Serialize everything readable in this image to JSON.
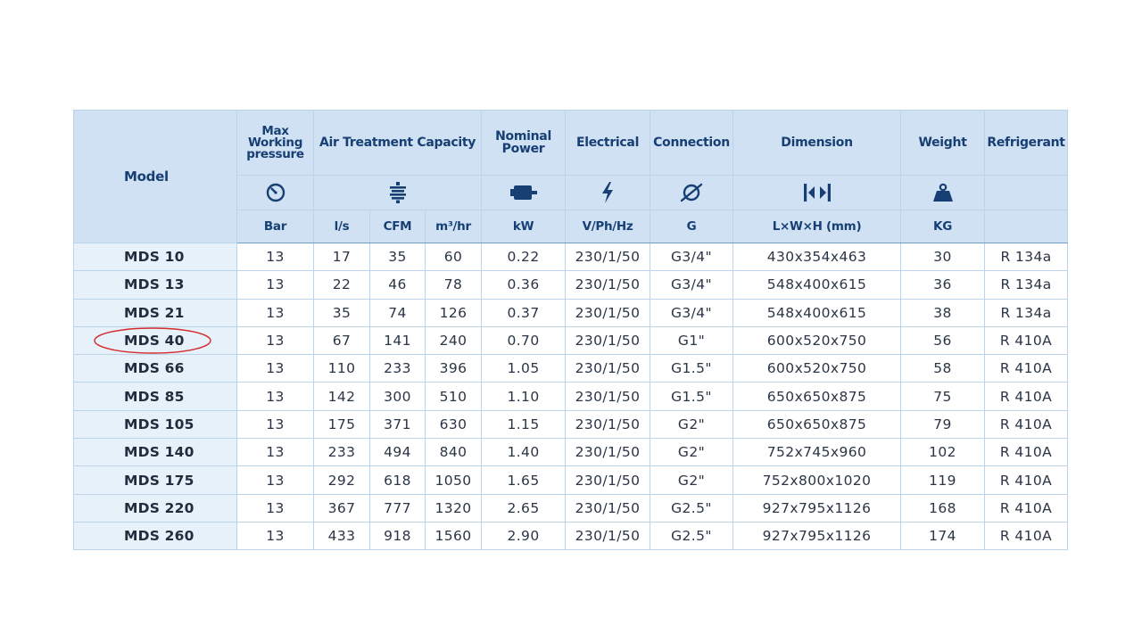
{
  "headers": {
    "model": "Model",
    "max_working_pressure": [
      "Max",
      "Working",
      "pressure"
    ],
    "air_treatment_capacity": "Air Treatment Capacity",
    "nominal_power": [
      "Nominal",
      "Power"
    ],
    "electrical": "Electrical",
    "connection": "Connection",
    "dimension": "Dimension",
    "weight": "Weight",
    "refrigerant": "Refrigerant"
  },
  "icons": {
    "pressure": "pressure-gauge-icon",
    "air_treatment": "air-treatment-icon",
    "power": "motor-icon",
    "electrical": "lightning-bolt-icon",
    "connection": "pipe-diameter-icon",
    "dimension": "dimension-arrows-icon",
    "weight": "weight-icon"
  },
  "units": {
    "pressure": "Bar",
    "flow_ls": "l/s",
    "flow_cfm": "CFM",
    "flow_m3hr": "m³/hr",
    "power": "kW",
    "electrical": "V/Ph/Hz",
    "connection": "G",
    "dimension": "L×W×H (mm)",
    "weight": "KG",
    "refrigerant": ""
  },
  "rows": [
    {
      "model": "MDS 10",
      "pressure": "13",
      "ls": "17",
      "cfm": "35",
      "m3hr": "60",
      "kw": "0.22",
      "elec": "230/1/50",
      "conn": "G3/4\"",
      "dim": "430x354x463",
      "kg": "30",
      "ref": "R 134a"
    },
    {
      "model": "MDS 13",
      "pressure": "13",
      "ls": "22",
      "cfm": "46",
      "m3hr": "78",
      "kw": "0.36",
      "elec": "230/1/50",
      "conn": "G3/4\"",
      "dim": "548x400x615",
      "kg": "36",
      "ref": "R 134a"
    },
    {
      "model": "MDS 21",
      "pressure": "13",
      "ls": "35",
      "cfm": "74",
      "m3hr": "126",
      "kw": "0.37",
      "elec": "230/1/50",
      "conn": "G3/4\"",
      "dim": "548x400x615",
      "kg": "38",
      "ref": "R 134a"
    },
    {
      "model": "MDS 40",
      "pressure": "13",
      "ls": "67",
      "cfm": "141",
      "m3hr": "240",
      "kw": "0.70",
      "elec": "230/1/50",
      "conn": "G1\"",
      "dim": "600x520x750",
      "kg": "56",
      "ref": "R 410A"
    },
    {
      "model": "MDS 66",
      "pressure": "13",
      "ls": "110",
      "cfm": "233",
      "m3hr": "396",
      "kw": "1.05",
      "elec": "230/1/50",
      "conn": "G1.5\"",
      "dim": "600x520x750",
      "kg": "58",
      "ref": "R 410A"
    },
    {
      "model": "MDS 85",
      "pressure": "13",
      "ls": "142",
      "cfm": "300",
      "m3hr": "510",
      "kw": "1.10",
      "elec": "230/1/50",
      "conn": "G1.5\"",
      "dim": "650x650x875",
      "kg": "75",
      "ref": "R 410A"
    },
    {
      "model": "MDS 105",
      "pressure": "13",
      "ls": "175",
      "cfm": "371",
      "m3hr": "630",
      "kw": "1.15",
      "elec": "230/1/50",
      "conn": "G2\"",
      "dim": "650x650x875",
      "kg": "79",
      "ref": "R 410A"
    },
    {
      "model": "MDS 140",
      "pressure": "13",
      "ls": "233",
      "cfm": "494",
      "m3hr": "840",
      "kw": "1.40",
      "elec": "230/1/50",
      "conn": "G2\"",
      "dim": "752x745x960",
      "kg": "102",
      "ref": "R 410A"
    },
    {
      "model": "MDS 175",
      "pressure": "13",
      "ls": "292",
      "cfm": "618",
      "m3hr": "1050",
      "kw": "1.65",
      "elec": "230/1/50",
      "conn": "G2\"",
      "dim": "752x800x1020",
      "kg": "119",
      "ref": "R 410A"
    },
    {
      "model": "MDS 220",
      "pressure": "13",
      "ls": "367",
      "cfm": "777",
      "m3hr": "1320",
      "kw": "2.65",
      "elec": "230/1/50",
      "conn": "G2.5\"",
      "dim": "927x795x1126",
      "kg": "168",
      "ref": "R 410A"
    },
    {
      "model": "MDS 260",
      "pressure": "13",
      "ls": "433",
      "cfm": "918",
      "m3hr": "1560",
      "kw": "2.90",
      "elec": "230/1/50",
      "conn": "G2.5\"",
      "dim": "927x795x1126",
      "kg": "174",
      "ref": "R 410A"
    }
  ],
  "highlight": {
    "model": "MDS 40",
    "color": "#d42a2a"
  },
  "colors": {
    "header_bg": "#cfe1f2",
    "header_text": "#173f74",
    "model_col_bg": "#e7f1fa",
    "border": "#6f9fcc",
    "grid": "#bcd4ea"
  }
}
